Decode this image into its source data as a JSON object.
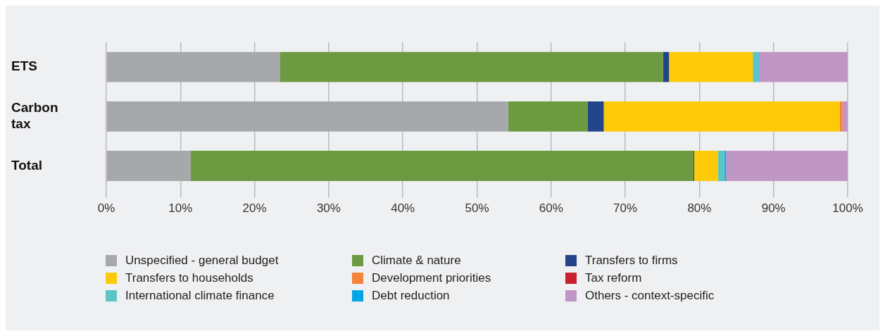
{
  "chart_data": {
    "type": "bar",
    "orientation": "horizontal",
    "stacked": true,
    "categories": [
      "ETS",
      "Carbon tax",
      "Total"
    ],
    "xlim": [
      0,
      100
    ],
    "xticks": [
      {
        "value": 0,
        "label": "0%"
      },
      {
        "value": 10,
        "label": "10%"
      },
      {
        "value": 20,
        "label": "20%"
      },
      {
        "value": 30,
        "label": "30%"
      },
      {
        "value": 40,
        "label": "40%"
      },
      {
        "value": 50,
        "label": "50%"
      },
      {
        "value": 60,
        "label": "60%"
      },
      {
        "value": 70,
        "label": "70%"
      },
      {
        "value": 80,
        "label": "80%"
      },
      {
        "value": 90,
        "label": "90%"
      },
      {
        "value": 100,
        "label": "100%"
      }
    ],
    "grid": "x",
    "legend": "bottom",
    "series": [
      {
        "name": "Unspecified - general budget",
        "color": "#a7a8ab",
        "values": [
          23.4,
          54.2,
          11.4
        ]
      },
      {
        "name": "Climate & nature",
        "color": "#6c9a41",
        "values": [
          51.7,
          10.7,
          67.8
        ]
      },
      {
        "name": "Transfers to firms",
        "color": "#22458a",
        "values": [
          0.8,
          2.2,
          0.1
        ]
      },
      {
        "name": "Transfers to households",
        "color": "#fdca0a",
        "values": [
          11.3,
          31.8,
          3.2
        ]
      },
      {
        "name": "Development priorities",
        "color": "#f5833c",
        "values": [
          0,
          0.4,
          0
        ]
      },
      {
        "name": "Tax reform",
        "color": "#c8202f",
        "values": [
          0,
          0,
          0
        ]
      },
      {
        "name": "International climate finance",
        "color": "#5bc5c5",
        "values": [
          0.7,
          0,
          0.9
        ]
      },
      {
        "name": "Debt reduction",
        "color": "#00a6e4",
        "values": [
          0.1,
          0,
          0.2
        ]
      },
      {
        "name": "Others - context-specific",
        "color": "#c096c5",
        "values": [
          12.0,
          0.7,
          16.4
        ]
      }
    ]
  }
}
